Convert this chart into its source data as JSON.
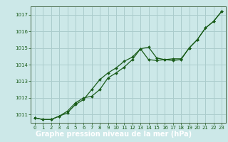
{
  "title": "Graphe pression niveau de la mer (hPa)",
  "x_hours": [
    0,
    1,
    2,
    3,
    4,
    5,
    6,
    7,
    8,
    9,
    10,
    11,
    12,
    13,
    14,
    15,
    16,
    17,
    18,
    19,
    20,
    21,
    22,
    23
  ],
  "series1": [
    1010.8,
    1010.7,
    1010.7,
    1010.9,
    1011.1,
    1011.6,
    1011.9,
    1012.5,
    1013.1,
    1013.5,
    1013.8,
    1014.2,
    1014.45,
    1014.95,
    1015.05,
    1014.4,
    1014.3,
    1014.25,
    1014.3,
    1015.0,
    1015.5,
    1016.2,
    1016.6,
    1017.2
  ],
  "series2": [
    1010.8,
    1010.7,
    1010.7,
    1010.9,
    1011.2,
    1011.7,
    1012.0,
    1012.1,
    1012.5,
    1013.2,
    1013.5,
    1013.85,
    1014.3,
    1014.95,
    1014.3,
    1014.25,
    1014.3,
    1014.35,
    1014.35,
    1015.0,
    1015.5,
    1016.2,
    1016.6,
    1017.2
  ],
  "ylim": [
    1010.5,
    1017.5
  ],
  "yticks": [
    1011,
    1012,
    1013,
    1014,
    1015,
    1016,
    1017
  ],
  "bg_color": "#cce8e8",
  "grid_color": "#aacccc",
  "line_color": "#1a5c1a",
  "marker_color": "#1a5c1a",
  "title_bg": "#2d7a2d",
  "title_color": "white",
  "axis_label_color": "#1a5c1a",
  "spine_color": "#446644"
}
